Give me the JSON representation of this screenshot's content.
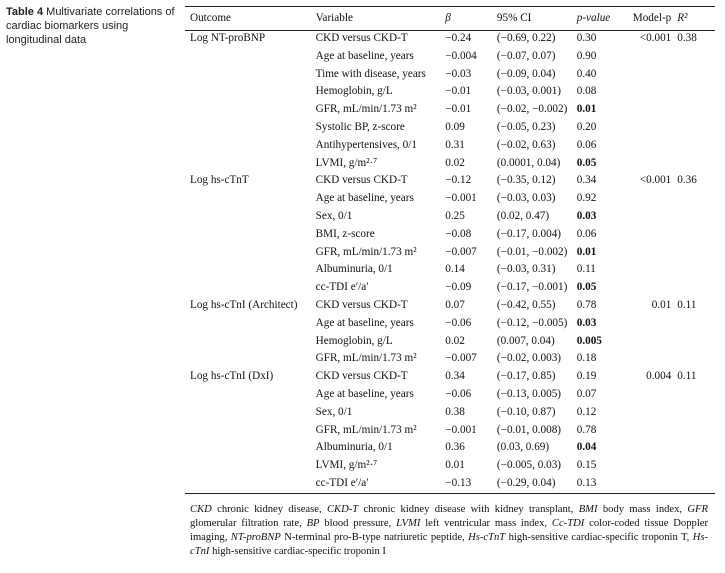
{
  "caption": {
    "label": "Table 4",
    "text": "Multivariate correlations of cardiac biomarkers using longitudinal data"
  },
  "headers": {
    "outcome": "Outcome",
    "variable": "Variable",
    "beta": "β",
    "ci": "95% CI",
    "pvalue": "p-value",
    "modelp": "Model-p",
    "r2": "R²"
  },
  "groups": [
    {
      "outcome": "Log NT-proBNP",
      "model_p": "<0.001",
      "r2": "0.38",
      "rows": [
        {
          "variable": "CKD versus CKD-T",
          "beta": "−0.24",
          "ci": "(−0.69, 0.22)",
          "p": "0.30",
          "sig": false
        },
        {
          "variable": "Age at baseline, years",
          "beta": "−0.004",
          "ci": "(−0.07, 0.07)",
          "p": "0.90",
          "sig": false
        },
        {
          "variable": "Time with disease, years",
          "beta": "−0.03",
          "ci": "(−0.09, 0.04)",
          "p": "0.40",
          "sig": false
        },
        {
          "variable": "Hemoglobin, g/L",
          "beta": "−0.01",
          "ci": "(−0.03, 0.001)",
          "p": "0.08",
          "sig": false
        },
        {
          "variable": "GFR, mL/min/1.73 m²",
          "beta": "−0.01",
          "ci": "(−0.02, −0.002)",
          "p": "0.01",
          "sig": true
        },
        {
          "variable": "Systolic BP, z-score",
          "beta": "0.09",
          "ci": "(−0.05, 0.23)",
          "p": "0.20",
          "sig": false
        },
        {
          "variable": "Antihypertensives, 0/1",
          "beta": "0.31",
          "ci": "(−0.02, 0.63)",
          "p": "0.06",
          "sig": false
        },
        {
          "variable": "LVMI, g/m²·⁷",
          "beta": "0.02",
          "ci": "(0.0001, 0.04)",
          "p": "0.05",
          "sig": true
        }
      ]
    },
    {
      "outcome": "Log hs-cTnT",
      "model_p": "<0.001",
      "r2": "0.36",
      "rows": [
        {
          "variable": "CKD versus CKD-T",
          "beta": "−0.12",
          "ci": "(−0.35, 0.12)",
          "p": "0.34",
          "sig": false
        },
        {
          "variable": "Age at baseline, years",
          "beta": "−0.001",
          "ci": "(−0.03, 0.03)",
          "p": "0.92",
          "sig": false
        },
        {
          "variable": "Sex, 0/1",
          "beta": "0.25",
          "ci": "(0.02, 0.47)",
          "p": "0.03",
          "sig": true
        },
        {
          "variable": "BMI, z-score",
          "beta": "−0.08",
          "ci": "(−0.17, 0.004)",
          "p": "0.06",
          "sig": false
        },
        {
          "variable": "GFR, mL/min/1.73 m²",
          "beta": "−0.007",
          "ci": "(−0.01, −0.002)",
          "p": "0.01",
          "sig": true
        },
        {
          "variable": "Albuminuria, 0/1",
          "beta": "0.14",
          "ci": "(−0.03, 0.31)",
          "p": "0.11",
          "sig": false
        },
        {
          "variable": "cc-TDI e′/a′",
          "beta": "−0.09",
          "ci": "(−0.17, −0.001)",
          "p": "0.05",
          "sig": true
        }
      ]
    },
    {
      "outcome": "Log hs-cTnI (Architect)",
      "model_p": "0.01",
      "r2": "0.11",
      "rows": [
        {
          "variable": "CKD versus CKD-T",
          "beta": "0.07",
          "ci": "(−0.42, 0.55)",
          "p": "0.78",
          "sig": false
        },
        {
          "variable": "Age at baseline, years",
          "beta": "−0.06",
          "ci": "(−0.12, −0.005)",
          "p": "0.03",
          "sig": true
        },
        {
          "variable": "Hemoglobin, g/L",
          "beta": "0.02",
          "ci": "(0.007, 0.04)",
          "p": "0.005",
          "sig": true
        },
        {
          "variable": "GFR, mL/min/1.73 m²",
          "beta": "−0.007",
          "ci": "(−0.02, 0.003)",
          "p": "0.18",
          "sig": false
        }
      ]
    },
    {
      "outcome": "Log hs-cTnI (DxI)",
      "model_p": "0.004",
      "r2": "0.11",
      "rows": [
        {
          "variable": "CKD versus CKD-T",
          "beta": "0.34",
          "ci": "(−0.17, 0.85)",
          "p": "0.19",
          "sig": false
        },
        {
          "variable": "Age at baseline, years",
          "beta": "−0.06",
          "ci": "(−0.13, 0.005)",
          "p": "0.07",
          "sig": false
        },
        {
          "variable": "Sex, 0/1",
          "beta": "0.38",
          "ci": "(−0.10, 0.87)",
          "p": "0.12",
          "sig": false
        },
        {
          "variable": "GFR, mL/min/1.73 m²",
          "beta": "−0.001",
          "ci": "(−0.01, 0.008)",
          "p": "0.78",
          "sig": false
        },
        {
          "variable": "Albuminuria, 0/1",
          "beta": "0.36",
          "ci": "(0.03, 0.69)",
          "p": "0.04",
          "sig": true
        },
        {
          "variable": "LVMI, g/m²·⁷",
          "beta": "0.01",
          "ci": "(−0.005, 0.03)",
          "p": "0.15",
          "sig": false
        },
        {
          "variable": "cc-TDI e′/a′",
          "beta": "−0.13",
          "ci": "(−0.29, 0.04)",
          "p": "0.13",
          "sig": false
        }
      ]
    }
  ],
  "footnote": [
    {
      "abbr": "CKD",
      "text": " chronic kidney disease, "
    },
    {
      "abbr": "CKD-T",
      "text": " chronic kidney disease with kidney transplant, "
    },
    {
      "abbr": "BMI",
      "text": " body mass index, "
    },
    {
      "abbr": "GFR",
      "text": " glomerular filtration rate, "
    },
    {
      "abbr": "BP",
      "text": " blood pressure, "
    },
    {
      "abbr": "LVMI",
      "text": " left ventricular mass index, "
    },
    {
      "abbr": "Cc-TDI",
      "text": " color-coded tissue Doppler imaging, "
    },
    {
      "abbr": "NT-proBNP",
      "text": " N-terminal pro-B-type natriuretic peptide, "
    },
    {
      "abbr": "Hs-cTnT",
      "text": " high-sensitive cardiac-specific troponin T, "
    },
    {
      "abbr": "Hs-cTnI",
      "text": " high-sensitive cardiac-specific troponin I"
    }
  ]
}
